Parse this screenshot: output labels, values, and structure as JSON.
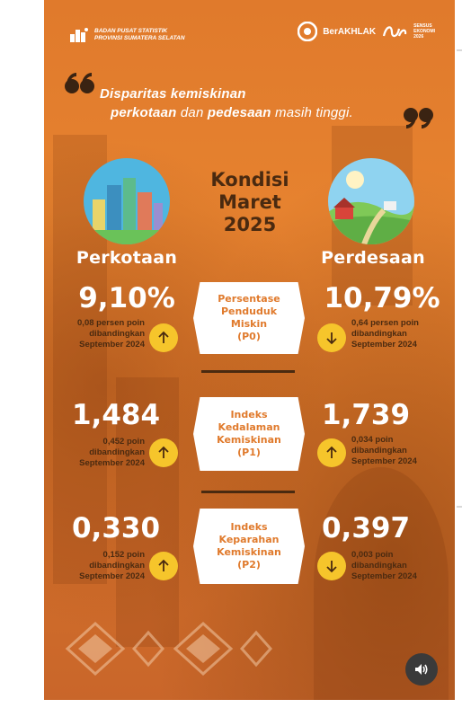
{
  "header": {
    "org_line1": "BADAN PUSAT STATISTIK",
    "org_line2": "PROVINSI SUMATERA SELATAN",
    "berakhlak": "BerAKHLAK",
    "sensus_line1": "SENSUS",
    "sensus_line2": "EKONOMI",
    "sensus_line3": "2026"
  },
  "headline": {
    "line1": "Disparitas kemiskinan",
    "line2_a": "perkotaan",
    "line2_b": " dan ",
    "line2_c": "pedesaan",
    "line2_d": " masih tinggi."
  },
  "center_title": {
    "line1": "Kondisi",
    "line2": "Maret",
    "line3": "2025"
  },
  "regions": {
    "urban": "Perkotaan",
    "rural": "Perdesaan"
  },
  "indicators": [
    {
      "label_lines": [
        "Persentase",
        "Penduduk",
        "Miskin",
        "(P0)"
      ],
      "urban_value": "9,10%",
      "urban_note": [
        "0,08 persen poin",
        "dibandingkan",
        "September 2024"
      ],
      "urban_direction": "up",
      "rural_value": "10,79%",
      "rural_note": [
        "0,64 persen poin",
        "dibandingkan",
        "September 2024"
      ],
      "rural_direction": "down"
    },
    {
      "label_lines": [
        "Indeks",
        "Kedalaman",
        "Kemiskinan",
        "(P1)"
      ],
      "urban_value": "1,484",
      "urban_note": [
        "0,452 poin",
        "dibandingkan",
        "September 2024"
      ],
      "urban_direction": "up",
      "rural_value": "1,739",
      "rural_note": [
        "0,034 poin",
        "dibandingkan",
        "September 2024"
      ],
      "rural_direction": "up"
    },
    {
      "label_lines": [
        "Indeks",
        "Keparahan",
        "Kemiskinan",
        "(P2)"
      ],
      "urban_value": "0,330",
      "urban_note": [
        "0,152 poin",
        "dibandingkan",
        "September 2024"
      ],
      "urban_direction": "up",
      "rural_value": "0,397",
      "rural_note": [
        "0,003 poin",
        "dibandingkan",
        "September 2024"
      ],
      "rural_direction": "down"
    }
  ],
  "colors": {
    "orange": "#e07a2c",
    "dark_brown": "#4a2a10",
    "arrow_yellow": "#f6c52b",
    "white": "#ffffff"
  },
  "icons": {
    "sound": "speaker-icon"
  }
}
